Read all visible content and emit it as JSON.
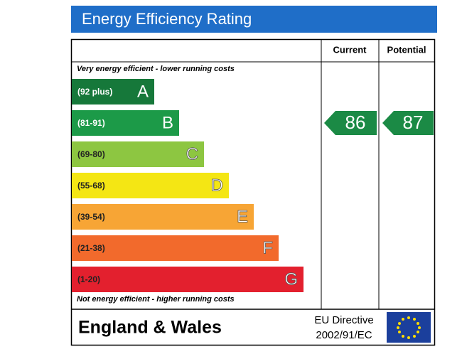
{
  "chart_data": {
    "type": "energy-rating",
    "title": "Energy Efficiency Rating",
    "columns": [
      "Current",
      "Potential"
    ],
    "top_note": "Very energy efficient - lower running costs",
    "bottom_note": "Not energy efficient - higher running costs",
    "bands": [
      {
        "range": "(92 plus)",
        "letter": "A",
        "color": "#16783a"
      },
      {
        "range": "(81-91)",
        "letter": "B",
        "color": "#1c9a48"
      },
      {
        "range": "(69-80)",
        "letter": "C",
        "color": "#8dc641"
      },
      {
        "range": "(55-68)",
        "letter": "D",
        "color": "#f4e614"
      },
      {
        "range": "(39-54)",
        "letter": "E",
        "color": "#f7a535"
      },
      {
        "range": "(21-38)",
        "letter": "F",
        "color": "#f26a2c"
      },
      {
        "range": "(1-20)",
        "letter": "G",
        "color": "#e3202e"
      }
    ],
    "current": 86,
    "potential": 87,
    "arrow_color": "#1b8a45",
    "region": "England & Wales",
    "directive": [
      "EU Directive",
      "2002/91/EC"
    ]
  }
}
